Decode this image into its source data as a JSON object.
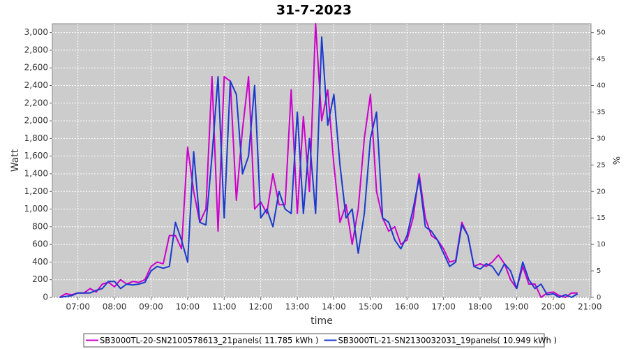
{
  "chart_data": {
    "type": "line",
    "title": "31-7-2023",
    "xlabel": "time",
    "ylabel": "Watt",
    "y2label": "%",
    "x": [
      390,
      400,
      410,
      420,
      430,
      440,
      450,
      460,
      470,
      480,
      490,
      500,
      510,
      520,
      530,
      540,
      550,
      560,
      570,
      580,
      590,
      600,
      610,
      620,
      630,
      640,
      650,
      660,
      670,
      680,
      690,
      700,
      710,
      720,
      730,
      740,
      750,
      760,
      770,
      780,
      790,
      800,
      810,
      820,
      830,
      840,
      850,
      860,
      870,
      880,
      890,
      900,
      910,
      920,
      930,
      940,
      950,
      960,
      970,
      980,
      990,
      1000,
      1010,
      1020,
      1030,
      1040,
      1050,
      1060,
      1070,
      1080,
      1090,
      1100,
      1110,
      1120,
      1130,
      1140,
      1150,
      1160,
      1170,
      1180,
      1190,
      1200,
      1210,
      1220,
      1230,
      1240
    ],
    "series": [
      {
        "name": "SB3000TL-20-SN2100578613_21panels( 11.785 kWh )",
        "color": "#cc00cc",
        "values": [
          0,
          40,
          30,
          50,
          50,
          100,
          60,
          150,
          170,
          120,
          200,
          150,
          180,
          170,
          200,
          350,
          400,
          380,
          700,
          700,
          550,
          1700,
          1200,
          850,
          1000,
          2500,
          750,
          2500,
          2450,
          1100,
          1900,
          2500,
          1000,
          1080,
          950,
          1400,
          1050,
          1050,
          2350,
          950,
          2050,
          1200,
          3100,
          2000,
          2350,
          1500,
          850,
          1050,
          600,
          1000,
          1800,
          2300,
          1200,
          900,
          750,
          800,
          600,
          650,
          900,
          1400,
          900,
          700,
          650,
          550,
          400,
          420,
          850,
          700,
          350,
          380,
          350,
          400,
          480,
          380,
          200,
          100,
          350,
          150,
          150,
          0,
          50,
          60,
          20,
          0,
          50,
          50
        ]
      },
      {
        "name": "SB3000TL-21-SN2130032031_19panels( 10.949 kWh )",
        "color": "#1a3acc",
        "values": [
          0,
          10,
          20,
          50,
          50,
          50,
          80,
          100,
          180,
          180,
          100,
          150,
          140,
          150,
          170,
          300,
          350,
          330,
          350,
          850,
          650,
          400,
          1650,
          850,
          820,
          1600,
          2500,
          900,
          2450,
          2300,
          1400,
          1600,
          2400,
          900,
          1000,
          800,
          1200,
          1000,
          950,
          2100,
          950,
          1800,
          950,
          2950,
          1950,
          2300,
          1500,
          900,
          1000,
          500,
          950,
          1800,
          2100,
          900,
          850,
          650,
          550,
          700,
          1000,
          1350,
          800,
          750,
          650,
          500,
          350,
          400,
          820,
          700,
          350,
          320,
          380,
          350,
          250,
          380,
          300,
          100,
          400,
          200,
          100,
          150,
          30,
          40,
          0,
          30,
          0,
          40
        ]
      }
    ],
    "xlim": [
      378,
      1262
    ],
    "xticks": [
      {
        "value": 420,
        "label": "07:00"
      },
      {
        "value": 480,
        "label": "08:00"
      },
      {
        "value": 540,
        "label": "09:00"
      },
      {
        "value": 600,
        "label": "10:00"
      },
      {
        "value": 660,
        "label": "11:00"
      },
      {
        "value": 720,
        "label": "12:00"
      },
      {
        "value": 780,
        "label": "13:00"
      },
      {
        "value": 840,
        "label": "14:00"
      },
      {
        "value": 900,
        "label": "15:00"
      },
      {
        "value": 960,
        "label": "16:00"
      },
      {
        "value": 1020,
        "label": "17:00"
      },
      {
        "value": 1080,
        "label": "18:00"
      },
      {
        "value": 1140,
        "label": "19:00"
      },
      {
        "value": 1200,
        "label": "20:00"
      },
      {
        "value": 1260,
        "label": "21:00"
      }
    ],
    "ylim": [
      0,
      3100
    ],
    "yticks": [
      0,
      200,
      400,
      600,
      800,
      {
        "value": 1000,
        "label": "1,000"
      },
      {
        "value": 1200,
        "label": "1,200"
      },
      {
        "value": 1400,
        "label": "1,400"
      },
      {
        "value": 1600,
        "label": "1,600"
      },
      {
        "value": 1800,
        "label": "1,800"
      },
      {
        "value": 2000,
        "label": "2,000"
      },
      {
        "value": 2200,
        "label": "2,200"
      },
      {
        "value": 2400,
        "label": "2,400"
      },
      {
        "value": 2600,
        "label": "2,600"
      },
      {
        "value": 2800,
        "label": "2,800"
      },
      {
        "value": 3000,
        "label": "3,000"
      }
    ],
    "y2lim": [
      0,
      51.67
    ],
    "y2ticks": [
      0,
      5,
      10,
      15,
      20,
      25,
      30,
      35,
      40,
      45,
      50
    ],
    "grid": true
  }
}
